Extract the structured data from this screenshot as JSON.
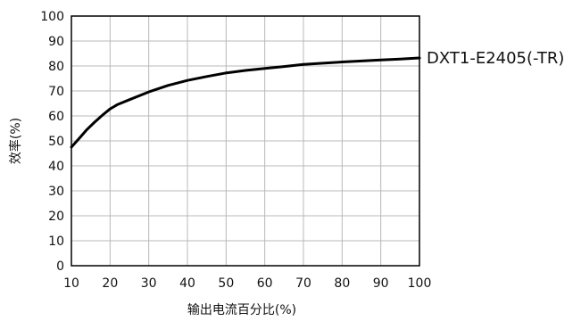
{
  "chart_data": {
    "type": "line",
    "xlabel": "输出电流百分比(%)",
    "ylabel": "效率(%)",
    "xlim": [
      10,
      100
    ],
    "ylim": [
      0,
      100
    ],
    "x_ticks": [
      10,
      20,
      30,
      40,
      50,
      60,
      70,
      80,
      90,
      100
    ],
    "y_ticks": [
      0,
      10,
      20,
      30,
      40,
      50,
      60,
      70,
      80,
      90,
      100
    ],
    "grid": true,
    "series": [
      {
        "name": "DXT1-E2405(-TR)",
        "color": "#000000",
        "x": [
          10,
          12,
          14,
          16,
          18,
          20,
          22,
          25,
          30,
          35,
          40,
          45,
          50,
          55,
          60,
          65,
          70,
          75,
          80,
          85,
          90,
          95,
          100
        ],
        "y": [
          47.5,
          51,
          54.5,
          57.5,
          60.3,
          62.8,
          64.6,
          66.5,
          69.6,
          72.2,
          74.2,
          75.8,
          77.2,
          78.2,
          79.0,
          79.8,
          80.6,
          81.1,
          81.6,
          82.0,
          82.4,
          82.8,
          83.2
        ]
      }
    ]
  }
}
